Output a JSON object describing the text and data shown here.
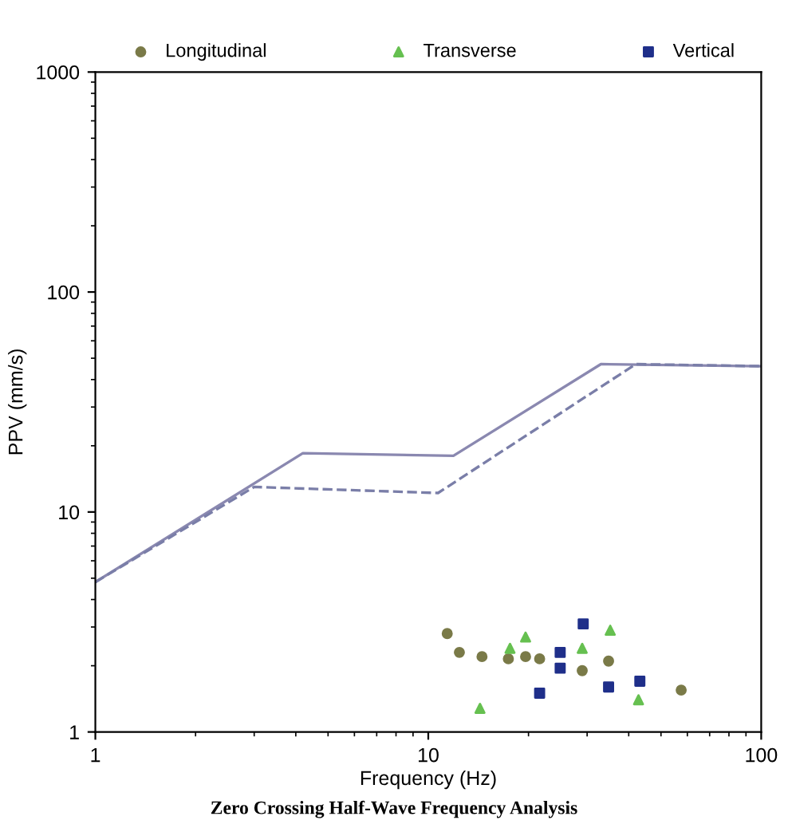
{
  "chart_data": {
    "type": "scatter",
    "xlabel": "Frequency (Hz)",
    "ylabel": "PPV (mm/s)",
    "log": "xy",
    "xlim": [
      1,
      100
    ],
    "xticks": [
      1,
      10,
      100
    ],
    "ylim": [
      1,
      1000
    ],
    "yticks": [
      1,
      10,
      100,
      1000
    ],
    "grid": false,
    "legend": "top",
    "annotations": [
      "Zero Crossing Half-Wave Frequency Analysis"
    ],
    "series": [
      {
        "name": "Longitudinal",
        "color": "#7a7a48",
        "marker": "circle",
        "x": [
          11.4,
          12.4,
          14.5,
          17.4,
          19.6,
          21.6,
          29,
          34.8,
          57.5
        ],
        "values": [
          2.8,
          2.3,
          2.2,
          2.15,
          2.2,
          2.15,
          1.9,
          2.1,
          1.55
        ]
      },
      {
        "name": "Transverse",
        "color": "#66c050",
        "marker": "triangle",
        "x": [
          14.3,
          17.6,
          19.6,
          29,
          35.2,
          42.8
        ],
        "values": [
          1.28,
          2.4,
          2.7,
          2.4,
          2.9,
          1.4
        ]
      },
      {
        "name": "Vertical",
        "color": "#1f2f8a",
        "marker": "square",
        "x": [
          29.2,
          24.9,
          24.9,
          21.6,
          34.8,
          43.2
        ],
        "values": [
          3.1,
          2.3,
          1.95,
          1.5,
          1.6,
          1.7
        ]
      },
      {
        "type": "line",
        "color": "#8a88b0",
        "line_style": "solid",
        "marker": "none",
        "x": [
          1,
          4.2,
          11.9,
          33,
          100
        ],
        "values": [
          4.8,
          18.5,
          18,
          47,
          46
        ]
      },
      {
        "type": "line",
        "color": "#7a7ea8",
        "line_style": "dashed",
        "marker": "none",
        "x": [
          1,
          3,
          10.7,
          42,
          100
        ],
        "values": [
          4.8,
          13,
          12.2,
          47,
          46
        ]
      }
    ]
  }
}
